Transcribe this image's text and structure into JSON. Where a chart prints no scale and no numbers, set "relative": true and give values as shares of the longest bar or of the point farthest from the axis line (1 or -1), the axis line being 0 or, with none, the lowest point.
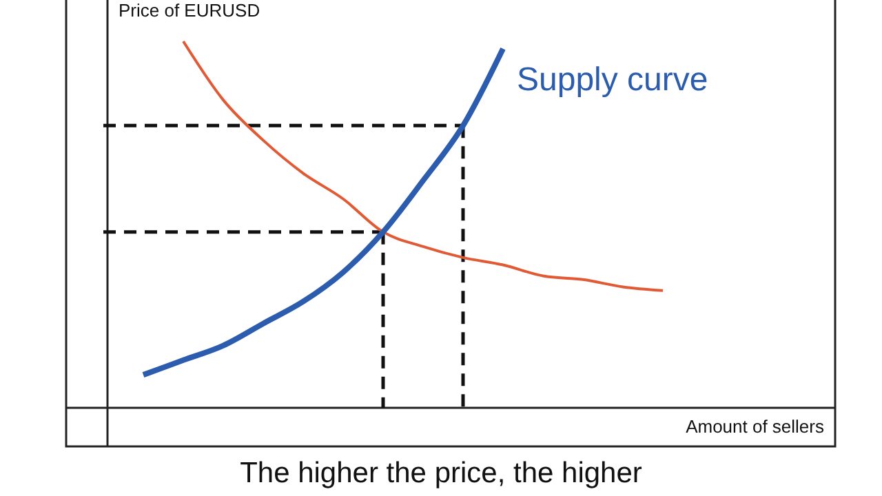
{
  "chart_data": {
    "type": "line",
    "relative": true,
    "xlabel": "Amount of sellers",
    "ylabel": "Price of EURUSD",
    "annotations": [
      "The higher the price, the higher"
    ],
    "categories": [
      null,
      null,
      null,
      null,
      null,
      null,
      null,
      null,
      null,
      null,
      null,
      null,
      null,
      null,
      null,
      null
    ],
    "series": [
      {
        "name": "Supply curve",
        "color": "#2b5cad",
        "values": [
          null,
          0.09,
          0.13,
          0.17,
          0.23,
          0.29,
          0.37,
          0.48,
          0.62,
          0.77,
          0.98,
          null,
          null,
          null,
          null,
          null
        ]
      },
      {
        "color": "#e05a35",
        "values": [
          null,
          null,
          1,
          0.84,
          0.73,
          0.64,
          0.57,
          0.48,
          0.44,
          0.41,
          0.39,
          0.36,
          0.35,
          0.33,
          0.32,
          null
        ]
      },
      {
        "color": "#111111",
        "line_style": "dashed",
        "values": [
          0.77,
          0.77,
          0.77,
          0.77,
          0.77,
          0.77,
          0.77,
          0.77,
          0.77,
          0.77,
          null,
          null,
          null,
          null,
          null,
          null
        ]
      },
      {
        "color": "#111111",
        "line_style": "dashed",
        "values": [
          0.48,
          0.48,
          0.48,
          0.48,
          0.48,
          0.48,
          0.48,
          0.48,
          null,
          null,
          null,
          null,
          null,
          null,
          null,
          null
        ]
      }
    ]
  }
}
